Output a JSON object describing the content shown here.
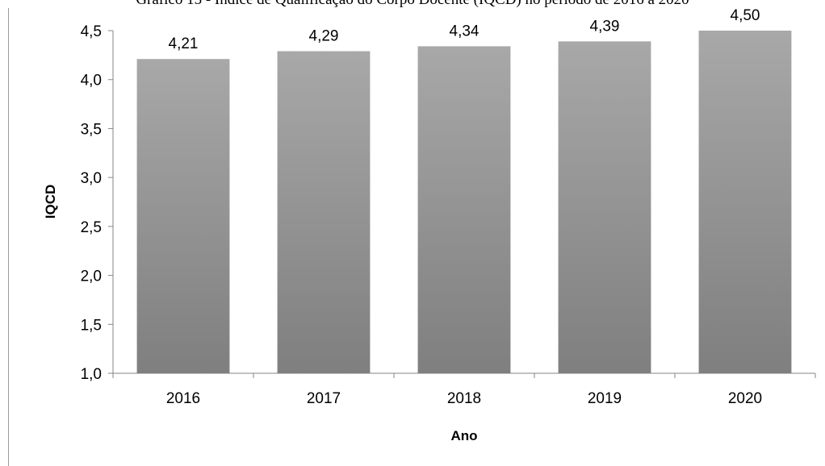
{
  "page": {
    "title": "Gráfico 15 - Índice de Qualificação do Corpo Docente (IQCD) no período de 2016 a 2020"
  },
  "chart_data": {
    "type": "bar",
    "categories": [
      "2016",
      "2017",
      "2018",
      "2019",
      "2020"
    ],
    "values": [
      4.21,
      4.29,
      4.34,
      4.39,
      4.5
    ],
    "value_labels": [
      "4,21",
      "4,29",
      "4,34",
      "4,39",
      "4,50"
    ],
    "xlabel": "Ano",
    "ylabel": "IQCD",
    "ylim": [
      1.0,
      4.5
    ],
    "yticks": [
      1.0,
      1.5,
      2.0,
      2.5,
      3.0,
      3.5,
      4.0,
      4.5
    ],
    "ytick_labels": [
      "1,0",
      "1,5",
      "2,0",
      "2,5",
      "3,0",
      "3,5",
      "4,0",
      "4,5"
    ],
    "grid": false,
    "bar_color_top": "#a8a8a8",
    "bar_color_bottom": "#7f7f7f"
  }
}
